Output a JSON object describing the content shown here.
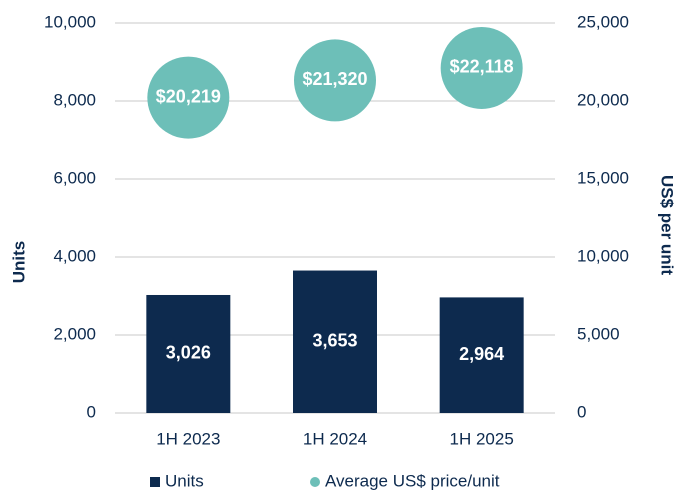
{
  "chart_data": {
    "type": "bar",
    "categories": [
      "1H 2023",
      "1H 2024",
      "1H 2025"
    ],
    "series": [
      {
        "name": "Units",
        "type": "bar",
        "color": "#0d2a4e",
        "values": [
          3026,
          3653,
          2964
        ],
        "value_labels": [
          "3,026",
          "3,653",
          "2,964"
        ]
      },
      {
        "name": "Average US$ price/unit",
        "type": "scatter",
        "axis": "y2",
        "color": "#6dbfb8",
        "values": [
          20219,
          21320,
          22118
        ],
        "value_labels": [
          "$20,219",
          "$21,320",
          "$22,118"
        ]
      }
    ],
    "ylabel": "Units",
    "y2label": "US$ per unit",
    "ylim": [
      0,
      10000
    ],
    "yticks": [
      0,
      {
        "value": 2000,
        "label": "2,000"
      },
      {
        "value": 4000,
        "label": "4,000"
      },
      {
        "value": 6000,
        "label": "6,000"
      },
      {
        "value": 8000,
        "label": "8,000"
      },
      {
        "value": 10000,
        "label": "10,000"
      }
    ],
    "y2lim": [
      0,
      25000
    ],
    "y2ticks": [
      0,
      {
        "value": 5000,
        "label": "5,000"
      },
      {
        "value": 10000,
        "label": "10,000"
      },
      {
        "value": 15000,
        "label": "15,000"
      },
      {
        "value": 20000,
        "label": "20,000"
      },
      {
        "value": 25000,
        "label": "25,000"
      }
    ],
    "grid": true,
    "legend": "bottom"
  }
}
